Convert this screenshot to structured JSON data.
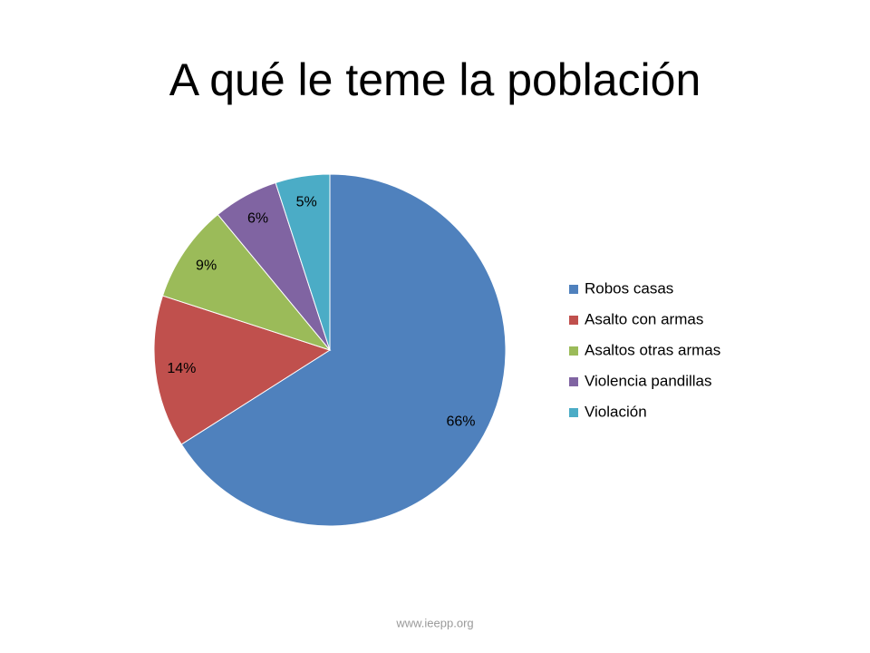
{
  "chart_data": {
    "type": "pie",
    "title": "A qué le teme la población",
    "categories": [
      "Robos casas",
      "Asalto con armas",
      "Asaltos otras armas",
      "Violencia pandillas",
      "Violación"
    ],
    "values": [
      66,
      14,
      9,
      6,
      5
    ],
    "value_labels": [
      "66%",
      "14%",
      "9%",
      "6%",
      "5%"
    ],
    "colors": [
      "#4f81bd",
      "#c0504d",
      "#9bbb59",
      "#8064a2",
      "#4bacc6"
    ],
    "legend": "right",
    "source": "www.ieepp.org"
  }
}
